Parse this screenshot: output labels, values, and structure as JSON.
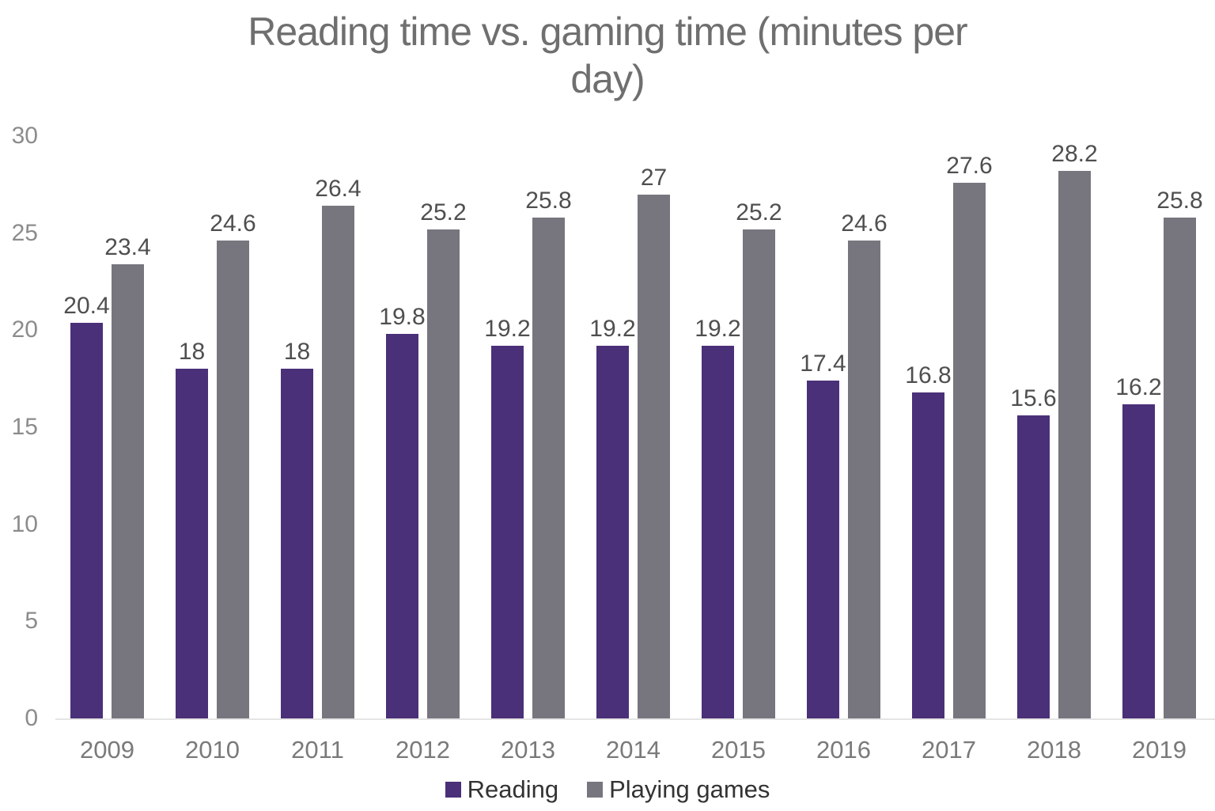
{
  "title": "Reading time vs. gaming time (minutes per day)",
  "title_lines": [
    "Reading time vs. gaming time (minutes per",
    "day)"
  ],
  "colors": {
    "reading_bar": "#4a3078",
    "games_bar": "#77767e",
    "title_text": "#6f6f6f",
    "y_tick_text": "#8c8c8c",
    "x_tick_text": "#7a7a7a",
    "data_label_text": "#4f4f4f",
    "legend_text": "#333333",
    "axis_line": "#e5e5e5",
    "background": "#ffffff"
  },
  "chart_data": {
    "type": "bar",
    "title": "Reading time vs. gaming time (minutes per day)",
    "categories": [
      "2009",
      "2010",
      "2011",
      "2012",
      "2013",
      "2014",
      "2015",
      "2016",
      "2017",
      "2018",
      "2019"
    ],
    "series": [
      {
        "name": "Reading",
        "color": "#4a3078",
        "values": [
          20.4,
          18,
          18,
          19.8,
          19.2,
          19.2,
          19.2,
          17.4,
          16.8,
          15.6,
          16.2
        ]
      },
      {
        "name": "Playing games",
        "color": "#77767e",
        "values": [
          23.4,
          24.6,
          26.4,
          25.2,
          25.8,
          27,
          25.2,
          24.6,
          27.6,
          28.2,
          25.8
        ]
      }
    ],
    "xlabel": "",
    "ylabel": "",
    "ylim": [
      0,
      30
    ],
    "yticks": [
      0,
      5,
      10,
      15,
      20,
      25,
      30
    ],
    "grid": false,
    "data_labels": true,
    "legend_position": "bottom"
  }
}
